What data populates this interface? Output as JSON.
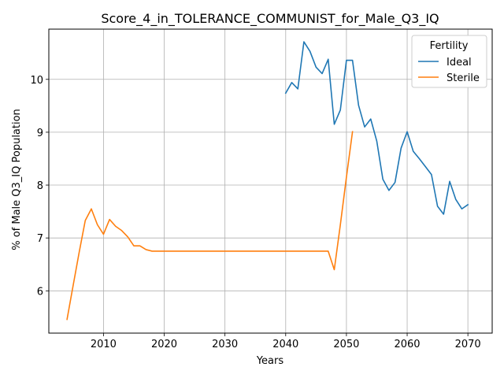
{
  "chart_data": {
    "type": "line",
    "title": "Score_4_in_TOLERANCE_COMMUNIST_for_Male_Q3_IQ",
    "xlabel": "Years",
    "ylabel": "% of Male Q3_IQ Population",
    "xlim": [
      2001,
      2074
    ],
    "ylim": [
      5.2,
      10.95
    ],
    "xticks": [
      2010,
      2020,
      2030,
      2040,
      2050,
      2060,
      2070
    ],
    "yticks": [
      6,
      7,
      8,
      9,
      10
    ],
    "grid": true,
    "legend": {
      "title": "Fertility",
      "placement": "top-right"
    },
    "series": [
      {
        "name": "Ideal",
        "color": "#1f77b4",
        "x": [
          2040,
          2041,
          2042,
          2043,
          2044,
          2045,
          2046,
          2047,
          2048,
          2049,
          2050,
          2051,
          2052,
          2053,
          2054,
          2055,
          2056,
          2057,
          2058,
          2059,
          2060,
          2061,
          2062,
          2063,
          2064,
          2065,
          2066,
          2067,
          2068,
          2069,
          2070
        ],
        "y": [
          9.74,
          9.94,
          9.82,
          10.71,
          10.53,
          10.23,
          10.11,
          10.38,
          9.15,
          9.42,
          10.36,
          10.36,
          9.51,
          9.1,
          9.25,
          8.83,
          8.11,
          7.9,
          8.05,
          8.7,
          9.01,
          8.64,
          8.5,
          8.35,
          8.2,
          7.6,
          7.45,
          8.07,
          7.73,
          7.55,
          7.63
        ]
      },
      {
        "name": "Sterile",
        "color": "#ff7f0e",
        "x": [
          2004,
          2005,
          2006,
          2007,
          2008,
          2009,
          2010,
          2011,
          2012,
          2013,
          2014,
          2015,
          2016,
          2017,
          2018,
          2019,
          2020,
          2021,
          2022,
          2023,
          2024,
          2025,
          2026,
          2027,
          2028,
          2029,
          2030,
          2031,
          2032,
          2033,
          2034,
          2035,
          2036,
          2037,
          2038,
          2039,
          2040,
          2041,
          2042,
          2043,
          2044,
          2045,
          2046,
          2047,
          2048,
          2049,
          2050,
          2051
        ],
        "y": [
          5.46,
          6.1,
          6.73,
          7.33,
          7.55,
          7.25,
          7.07,
          7.35,
          7.22,
          7.14,
          7.02,
          6.85,
          6.85,
          6.78,
          6.75,
          6.75,
          6.75,
          6.75,
          6.75,
          6.75,
          6.75,
          6.75,
          6.75,
          6.75,
          6.75,
          6.75,
          6.75,
          6.75,
          6.75,
          6.75,
          6.75,
          6.75,
          6.75,
          6.75,
          6.75,
          6.75,
          6.75,
          6.75,
          6.75,
          6.75,
          6.75,
          6.75,
          6.75,
          6.75,
          6.4,
          7.25,
          8.15,
          9.01
        ]
      }
    ]
  }
}
